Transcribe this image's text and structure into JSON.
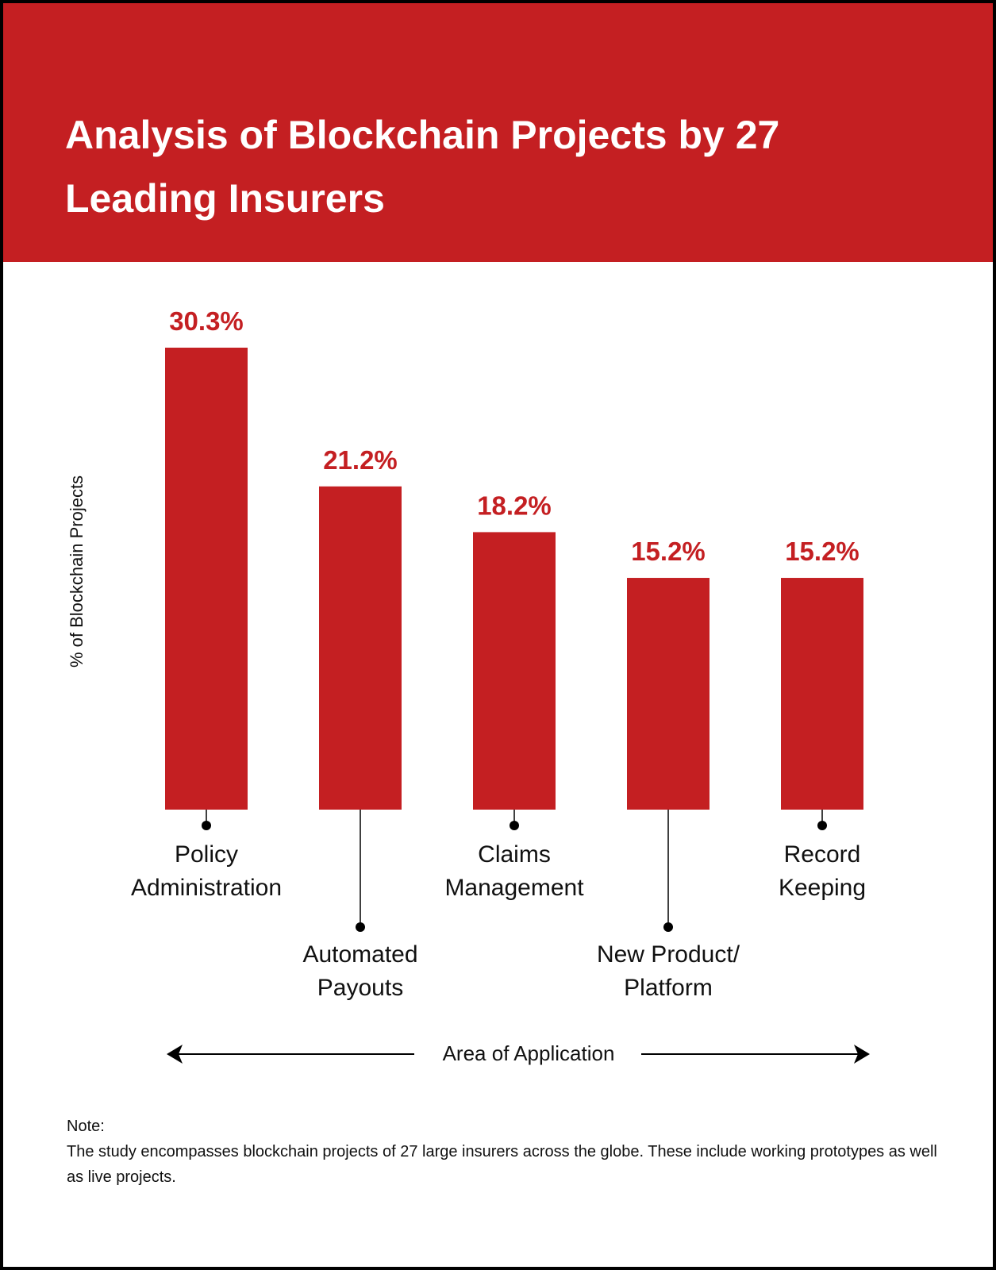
{
  "chart_data": {
    "type": "bar",
    "title": "Analysis of Blockchain Projects by 27 Leading Insurers",
    "ylabel": "% of Blockchain Projects",
    "xlabel": "Area of Application",
    "categories": [
      [
        "Policy",
        "Administration"
      ],
      [
        "Automated",
        "Payouts"
      ],
      [
        "Claims",
        "Management"
      ],
      [
        "New Product/",
        "Platform"
      ],
      [
        "Record",
        "Keeping"
      ]
    ],
    "values": [
      30.3,
      21.2,
      18.2,
      15.2,
      15.2
    ],
    "data_labels": [
      "30.3%",
      "21.2%",
      "18.2%",
      "15.2%",
      "15.2%"
    ],
    "grid": false,
    "bar_color": "#C41F22",
    "label_color": "#C41F22"
  },
  "note": {
    "heading": "Note:",
    "text": "The study encompasses blockchain projects of 27 large insurers across the globe. These include working prototypes as well as live projects."
  }
}
